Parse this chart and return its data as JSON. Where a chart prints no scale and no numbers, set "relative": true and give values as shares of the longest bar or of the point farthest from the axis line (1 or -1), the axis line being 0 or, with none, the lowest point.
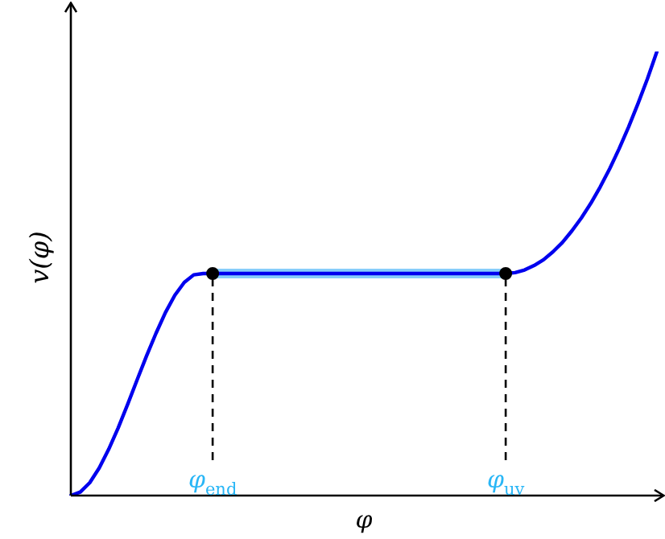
{
  "chart_data": {
    "type": "line",
    "relative": true,
    "xlabel": "φ",
    "ylabel": "v(φ)",
    "legend": false,
    "marker": "none",
    "categories": [
      null,
      null,
      null,
      null,
      null,
      null,
      null,
      null,
      null,
      null,
      null,
      null,
      null,
      null,
      null,
      "φ$_{end}$",
      null,
      null,
      null,
      null,
      null,
      null,
      null,
      null,
      null,
      null,
      null,
      null,
      null,
      null,
      null,
      null,
      null,
      null,
      null,
      null,
      null,
      null,
      null,
      null,
      null,
      null,
      null,
      null,
      null,
      null,
      "φ$_{uv}$",
      null,
      null,
      null,
      null,
      null,
      null,
      null,
      null,
      null,
      null,
      null,
      null,
      null,
      null,
      null,
      null
    ],
    "series": [
      {
        "type": "line",
        "color": "#87cefa",
        "values": [
          null,
          null,
          null,
          null,
          null,
          null,
          null,
          null,
          null,
          null,
          null,
          null,
          null,
          null,
          null,
          0.5,
          0.5,
          0.5,
          0.5,
          0.5,
          0.5,
          0.5,
          0.5,
          0.5,
          0.5,
          0.5,
          0.5,
          0.5,
          0.5,
          0.5,
          0.5,
          0.5,
          0.5,
          0.5,
          0.5,
          0.5,
          0.5,
          0.5,
          0.5,
          0.5,
          0.5,
          0.5,
          0.5,
          0.5,
          0.5,
          0.5,
          0.5,
          null,
          null,
          null,
          null,
          null,
          null,
          null,
          null,
          null,
          null,
          null,
          null,
          null,
          null,
          null,
          null
        ]
      },
      {
        "type": "line",
        "color": "#0000ee",
        "values": [
          0,
          0.008,
          0.029,
          0.062,
          0.104,
          0.152,
          0.205,
          0.26,
          0.314,
          0.365,
          0.412,
          0.451,
          0.48,
          0.497,
          0.5,
          0.5,
          0.5,
          0.5,
          0.5,
          0.5,
          0.5,
          0.5,
          0.5,
          0.5,
          0.5,
          0.5,
          0.5,
          0.5,
          0.5,
          0.5,
          0.5,
          0.5,
          0.5,
          0.5,
          0.5,
          0.5,
          0.5,
          0.5,
          0.5,
          0.5,
          0.5,
          0.5,
          0.5,
          0.5,
          0.5,
          0.5,
          0.5,
          0.502,
          0.508,
          0.518,
          0.531,
          0.549,
          0.57,
          0.596,
          0.625,
          0.658,
          0.695,
          0.736,
          0.781,
          0.83,
          0.883,
          0.939,
          1
        ]
      },
      {
        "type": "scatter",
        "color": "#000000",
        "marker": "circle",
        "values": [
          null,
          null,
          null,
          null,
          null,
          null,
          null,
          null,
          null,
          null,
          null,
          null,
          null,
          null,
          null,
          0.5,
          null,
          null,
          null,
          null,
          null,
          null,
          null,
          null,
          null,
          null,
          null,
          null,
          null,
          null,
          null,
          null,
          null,
          null,
          null,
          null,
          null,
          null,
          null,
          null,
          null,
          null,
          null,
          null,
          null,
          null,
          0.5,
          null,
          null,
          null,
          null,
          null,
          null,
          null,
          null,
          null,
          null,
          null,
          null,
          null,
          null,
          null,
          null
        ]
      }
    ],
    "ref_lines": [
      {
        "axis": "x",
        "value": "φ$_{end}$",
        "color": "#000000",
        "line_style": "dashed"
      },
      {
        "axis": "x",
        "value": "φ$_{uv}$",
        "color": "#000000",
        "line_style": "dashed"
      }
    ]
  }
}
